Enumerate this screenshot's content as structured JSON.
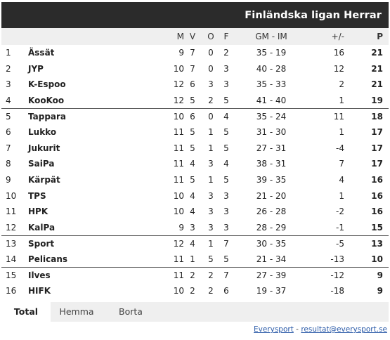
{
  "header": {
    "title": "Finländska ligan Herrar"
  },
  "columns": {
    "m": "M",
    "v": "V",
    "o": "O",
    "f": "F",
    "gm": "GM - IM",
    "diff": "+/-",
    "p": "P"
  },
  "rows": [
    {
      "pos": "1",
      "team": "Ässät",
      "m": "9",
      "v": "7",
      "o": "0",
      "f": "2",
      "gm": "35 - 19",
      "diff": "16",
      "p": "21"
    },
    {
      "pos": "2",
      "team": "JYP",
      "m": "10",
      "v": "7",
      "o": "0",
      "f": "3",
      "gm": "40 - 28",
      "diff": "12",
      "p": "21"
    },
    {
      "pos": "3",
      "team": "K-Espoo",
      "m": "12",
      "v": "6",
      "o": "3",
      "f": "3",
      "gm": "35 - 33",
      "diff": "2",
      "p": "21"
    },
    {
      "pos": "4",
      "team": "KooKoo",
      "m": "12",
      "v": "5",
      "o": "2",
      "f": "5",
      "gm": "41 - 40",
      "diff": "1",
      "p": "19"
    },
    {
      "pos": "5",
      "team": "Tappara",
      "m": "10",
      "v": "6",
      "o": "0",
      "f": "4",
      "gm": "35 - 24",
      "diff": "11",
      "p": "18"
    },
    {
      "pos": "6",
      "team": "Lukko",
      "m": "11",
      "v": "5",
      "o": "1",
      "f": "5",
      "gm": "31 - 30",
      "diff": "1",
      "p": "17"
    },
    {
      "pos": "7",
      "team": "Jukurit",
      "m": "11",
      "v": "5",
      "o": "1",
      "f": "5",
      "gm": "27 - 31",
      "diff": "-4",
      "p": "17"
    },
    {
      "pos": "8",
      "team": "SaiPa",
      "m": "11",
      "v": "4",
      "o": "3",
      "f": "4",
      "gm": "38 - 31",
      "diff": "7",
      "p": "17"
    },
    {
      "pos": "9",
      "team": "Kärpät",
      "m": "11",
      "v": "5",
      "o": "1",
      "f": "5",
      "gm": "39 - 35",
      "diff": "4",
      "p": "16"
    },
    {
      "pos": "10",
      "team": "TPS",
      "m": "10",
      "v": "4",
      "o": "3",
      "f": "3",
      "gm": "21 - 20",
      "diff": "1",
      "p": "16"
    },
    {
      "pos": "11",
      "team": "HPK",
      "m": "10",
      "v": "4",
      "o": "3",
      "f": "3",
      "gm": "26 - 28",
      "diff": "-2",
      "p": "16"
    },
    {
      "pos": "12",
      "team": "KalPa",
      "m": "9",
      "v": "3",
      "o": "3",
      "f": "3",
      "gm": "28 - 29",
      "diff": "-1",
      "p": "15"
    },
    {
      "pos": "13",
      "team": "Sport",
      "m": "12",
      "v": "4",
      "o": "1",
      "f": "7",
      "gm": "30 - 35",
      "diff": "-5",
      "p": "13"
    },
    {
      "pos": "14",
      "team": "Pelicans",
      "m": "11",
      "v": "1",
      "o": "5",
      "f": "5",
      "gm": "21 - 34",
      "diff": "-13",
      "p": "10"
    },
    {
      "pos": "15",
      "team": "Ilves",
      "m": "11",
      "v": "2",
      "o": "2",
      "f": "7",
      "gm": "27 - 39",
      "diff": "-12",
      "p": "9"
    },
    {
      "pos": "16",
      "team": "HIFK",
      "m": "10",
      "v": "2",
      "o": "2",
      "f": "6",
      "gm": "19 - 37",
      "diff": "-18",
      "p": "9"
    }
  ],
  "tabs": [
    {
      "label": "Total",
      "active": true
    },
    {
      "label": "Hemma",
      "active": false
    },
    {
      "label": "Borta",
      "active": false
    }
  ],
  "footer": {
    "brand": "Everysport",
    "separator": " - ",
    "email": "resultat@everysport.se"
  }
}
